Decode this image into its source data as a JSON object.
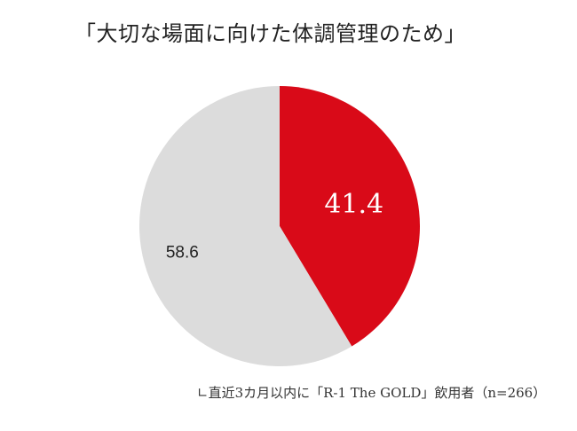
{
  "chart_data": {
    "type": "pie",
    "title": "「大切な場面に向けた体調管理のため」",
    "slices": [
      {
        "label": "41.4",
        "value": 41.4,
        "color": "#d90a18",
        "label_color": "#ffffff"
      },
      {
        "label": "58.6",
        "value": 58.6,
        "color": "#dcdcdc",
        "label_color": "#222222"
      }
    ],
    "start_angle": "12 o'clock",
    "direction": "clockwise",
    "legend": "none",
    "footnote": "∟直近3カ月以内に「R-1 The GOLD」飲用者（n=266）"
  }
}
